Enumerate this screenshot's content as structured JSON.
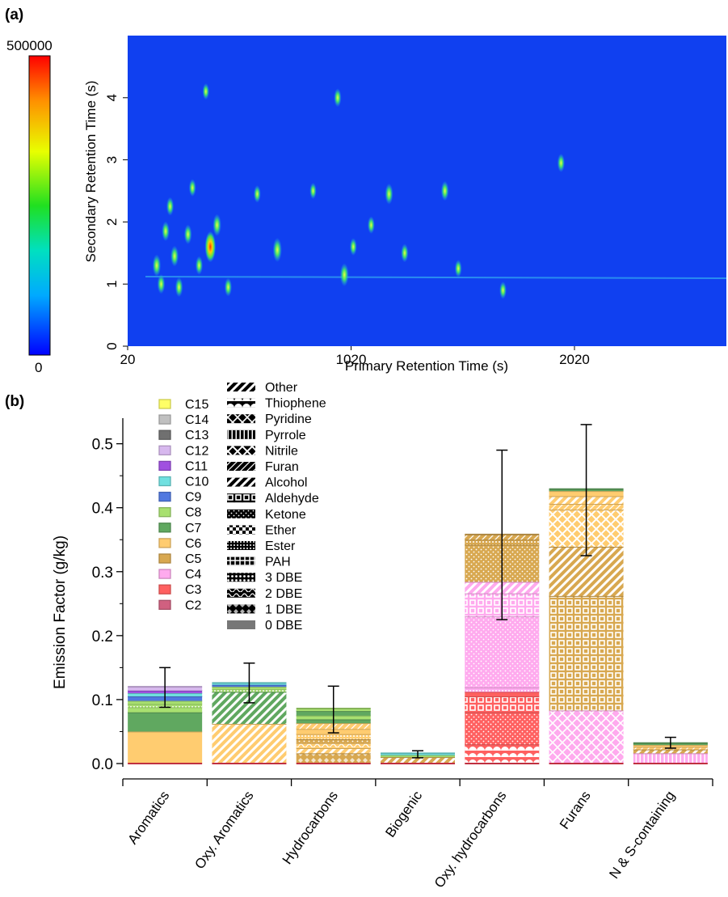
{
  "panel_a": {
    "label": "(a)",
    "colorbar_max": "500000",
    "colorbar_min": "0",
    "xlabel": "Primary Retention Time (s)",
    "ylabel": "Secondary Retention Time (s)",
    "x_ticks": [
      "20",
      "1020",
      "2020"
    ],
    "y_ticks": [
      "0",
      "1",
      "2",
      "3",
      "4"
    ],
    "colors": {
      "background": "#1040f0",
      "peak_low": "#18c8e0",
      "peak_mid": "#40e060",
      "peak_high": "#ff6000"
    }
  },
  "panel_b": {
    "label": "(b)",
    "legend_carbon": [
      {
        "name": "C15",
        "color": "#ffff66"
      },
      {
        "name": "C14",
        "color": "#c0c0c0"
      },
      {
        "name": "C13",
        "color": "#707070"
      },
      {
        "name": "C12",
        "color": "#d7b8ee"
      },
      {
        "name": "C11",
        "color": "#a050e0"
      },
      {
        "name": "C10",
        "color": "#70e0e0"
      },
      {
        "name": "C9",
        "color": "#5078e0"
      },
      {
        "name": "C8",
        "color": "#a8e070"
      },
      {
        "name": "C7",
        "color": "#60a860"
      },
      {
        "name": "C6",
        "color": "#ffcc70"
      },
      {
        "name": "C5",
        "color": "#d8a850"
      },
      {
        "name": "C4",
        "color": "#ffaaee"
      },
      {
        "name": "C3",
        "color": "#ff6060"
      },
      {
        "name": "C2",
        "color": "#d06080"
      }
    ],
    "legend_class": [
      {
        "name": "Other",
        "pattern": "p-diag-bold"
      },
      {
        "name": "Thiophene",
        "pattern": "p-arches"
      },
      {
        "name": "Pyridine",
        "pattern": "p-diamond"
      },
      {
        "name": "Pyrrole",
        "pattern": "p-vlines"
      },
      {
        "name": "Nitrile",
        "pattern": "p-cross"
      },
      {
        "name": "Furan",
        "pattern": "p-diag-thin"
      },
      {
        "name": "Alcohol",
        "pattern": "p-diag-bold"
      },
      {
        "name": "Aldehyde",
        "pattern": "p-squares"
      },
      {
        "name": "Ketone",
        "pattern": "p-dots"
      },
      {
        "name": "Ether",
        "pattern": "p-checker"
      },
      {
        "name": "Ester",
        "pattern": "p-dots-dense"
      },
      {
        "name": "PAH",
        "pattern": "p-grid-bold"
      },
      {
        "name": "3 DBE",
        "pattern": "p-grid-dots"
      },
      {
        "name": "2 DBE",
        "pattern": "p-waves"
      },
      {
        "name": "1 DBE",
        "pattern": "p-diamond-fill"
      },
      {
        "name": "0 DBE",
        "pattern": "p-solid"
      }
    ]
  },
  "chart_data": [
    {
      "type": "heatmap",
      "xlabel": "Primary Retention Time (s)",
      "ylabel": "Secondary Retention Time (s)",
      "xlim": [
        20,
        2700
      ],
      "ylim": [
        0,
        5
      ],
      "x_ticks": [
        20,
        1020,
        2020
      ],
      "y_ticks": [
        0,
        1,
        2,
        3,
        4
      ],
      "colorbar": {
        "min": 0,
        "max": 500000,
        "colormap": "rainbow"
      },
      "peaks": [
        {
          "x": 150,
          "y": 1.3,
          "i": 0.55
        },
        {
          "x": 170,
          "y": 1.0,
          "i": 0.45
        },
        {
          "x": 190,
          "y": 1.85,
          "i": 0.45
        },
        {
          "x": 210,
          "y": 2.25,
          "i": 0.4
        },
        {
          "x": 230,
          "y": 1.45,
          "i": 0.5
        },
        {
          "x": 250,
          "y": 0.95,
          "i": 0.45
        },
        {
          "x": 290,
          "y": 1.8,
          "i": 0.45
        },
        {
          "x": 310,
          "y": 2.55,
          "i": 0.35
        },
        {
          "x": 340,
          "y": 1.3,
          "i": 0.4
        },
        {
          "x": 370,
          "y": 4.1,
          "i": 0.3
        },
        {
          "x": 390,
          "y": 1.6,
          "i": 0.95
        },
        {
          "x": 420,
          "y": 1.95,
          "i": 0.55
        },
        {
          "x": 470,
          "y": 0.95,
          "i": 0.4
        },
        {
          "x": 600,
          "y": 2.45,
          "i": 0.35
        },
        {
          "x": 690,
          "y": 1.55,
          "i": 0.65
        },
        {
          "x": 850,
          "y": 2.5,
          "i": 0.3
        },
        {
          "x": 960,
          "y": 4.0,
          "i": 0.4
        },
        {
          "x": 990,
          "y": 1.15,
          "i": 0.6
        },
        {
          "x": 1030,
          "y": 1.6,
          "i": 0.35
        },
        {
          "x": 1110,
          "y": 1.95,
          "i": 0.35
        },
        {
          "x": 1190,
          "y": 2.45,
          "i": 0.5
        },
        {
          "x": 1260,
          "y": 1.5,
          "i": 0.4
        },
        {
          "x": 1440,
          "y": 2.5,
          "i": 0.45
        },
        {
          "x": 1500,
          "y": 1.25,
          "i": 0.35
        },
        {
          "x": 1700,
          "y": 0.9,
          "i": 0.35
        },
        {
          "x": 1960,
          "y": 2.95,
          "i": 0.4
        }
      ]
    },
    {
      "type": "bar",
      "stacked": true,
      "ylabel": "Emission Factor (g/kg)",
      "ylim": [
        0,
        0.54
      ],
      "y_ticks": [
        0.0,
        0.1,
        0.2,
        0.3,
        0.4,
        0.5
      ],
      "categories": [
        "Aromatics",
        "Oxy. Aromatics",
        "Hydrocarbons",
        "Biogenic",
        "Oxy. hydrocarbons",
        "Furans",
        "N & S-containing"
      ],
      "bars": [
        {
          "category": "Aromatics",
          "total": 0.12,
          "error": [
            0.088,
            0.15
          ],
          "segments": [
            {
              "c": "C6",
              "p": "p-solid",
              "v": 0.05
            },
            {
              "c": "C7",
              "p": "p-solid",
              "v": 0.03
            },
            {
              "c": "C8",
              "p": "p-solid",
              "v": 0.008
            },
            {
              "c": "C8",
              "p": "p-dots-dense",
              "v": 0.005
            },
            {
              "c": "C8",
              "p": "p-solid",
              "v": 0.005
            },
            {
              "c": "C9",
              "p": "p-solid",
              "v": 0.007
            },
            {
              "c": "C10",
              "p": "p-solid",
              "v": 0.005
            },
            {
              "c": "C11",
              "p": "p-solid",
              "v": 0.004
            },
            {
              "c": "C12",
              "p": "p-solid",
              "v": 0.006
            }
          ]
        },
        {
          "category": "Oxy. Aromatics",
          "total": 0.126,
          "error": [
            0.095,
            0.157
          ],
          "segments": [
            {
              "c": "C6",
              "p": "p-diag-bold",
              "v": 0.062
            },
            {
              "c": "C7",
              "p": "p-diag-bold",
              "v": 0.05
            },
            {
              "c": "C8",
              "p": "p-dots-dense",
              "v": 0.004
            },
            {
              "c": "C8",
              "p": "p-solid",
              "v": 0.004
            },
            {
              "c": "C9",
              "p": "p-solid",
              "v": 0.003
            },
            {
              "c": "C10",
              "p": "p-solid",
              "v": 0.003
            }
          ]
        },
        {
          "category": "Hydrocarbons",
          "total": 0.086,
          "error": [
            0.048,
            0.121
          ],
          "segments": [
            {
              "c": "C5",
              "p": "p-diamond-fill",
              "v": 0.016
            },
            {
              "c": "C6",
              "p": "p-diag-bold",
              "v": 0.008
            },
            {
              "c": "C6",
              "p": "p-waves",
              "v": 0.008
            },
            {
              "c": "C5",
              "p": "p-dots",
              "v": 0.006
            },
            {
              "c": "C6",
              "p": "p-dots-dense",
              "v": 0.008
            },
            {
              "c": "C6",
              "p": "p-solid",
              "v": 0.008
            },
            {
              "c": "C6",
              "p": "p-diag-thin",
              "v": 0.009
            },
            {
              "c": "C7",
              "p": "p-solid",
              "v": 0.006
            },
            {
              "c": "C8",
              "p": "p-solid",
              "v": 0.006
            },
            {
              "c": "C7",
              "p": "p-solid",
              "v": 0.007
            },
            {
              "c": "C8",
              "p": "p-solid",
              "v": 0.004
            }
          ]
        },
        {
          "category": "Biogenic",
          "total": 0.016,
          "error": [
            0.009,
            0.02
          ],
          "segments": [
            {
              "c": "C5",
              "p": "p-diag-bold",
              "v": 0.01
            },
            {
              "c": "C8",
              "p": "p-solid",
              "v": 0.003
            },
            {
              "c": "C10",
              "p": "p-solid",
              "v": 0.003
            }
          ]
        },
        {
          "category": "Oxy. hydrocarbons",
          "total": 0.358,
          "error": [
            0.225,
            0.49
          ],
          "segments": [
            {
              "c": "C3",
              "p": "p-arches",
              "v": 0.03
            },
            {
              "c": "C3",
              "p": "p-dots",
              "v": 0.05
            },
            {
              "c": "C3",
              "p": "p-squares",
              "v": 0.025
            },
            {
              "c": "C3",
              "p": "p-solid",
              "v": 0.007
            },
            {
              "c": "C4",
              "p": "p-dots-dense",
              "v": 0.007
            },
            {
              "c": "C4",
              "p": "p-dots",
              "v": 0.111
            },
            {
              "c": "C4",
              "p": "p-squares",
              "v": 0.036
            },
            {
              "c": "C4",
              "p": "p-diag-bold",
              "v": 0.018
            },
            {
              "c": "C5",
              "p": "p-dots",
              "v": 0.058
            },
            {
              "c": "C5",
              "p": "p-dots-dense",
              "v": 0.008
            },
            {
              "c": "C5",
              "p": "p-diag-thin",
              "v": 0.008
            }
          ]
        },
        {
          "category": "Furans",
          "total": 0.429,
          "error": [
            0.325,
            0.53
          ],
          "segments": [
            {
              "c": "C4",
              "p": "p-diamond",
              "v": 0.083
            },
            {
              "c": "C5",
              "p": "p-squares",
              "v": 0.179
            },
            {
              "c": "C5",
              "p": "p-diag-bold",
              "v": 0.077
            },
            {
              "c": "C6",
              "p": "p-cross",
              "v": 0.058
            },
            {
              "c": "C6",
              "p": "p-diag-thin",
              "v": 0.009
            },
            {
              "c": "C6",
              "p": "p-diag-bold",
              "v": 0.012
            },
            {
              "c": "C6",
              "p": "p-solid",
              "v": 0.008
            },
            {
              "c": "C7",
              "p": "p-solid",
              "v": 0.003
            }
          ]
        },
        {
          "category": "N & S-containing",
          "total": 0.032,
          "error": [
            0.024,
            0.041
          ],
          "segments": [
            {
              "c": "C4",
              "p": "p-vlines",
              "v": 0.016
            },
            {
              "c": "C5",
              "p": "p-diag-bold",
              "v": 0.006
            },
            {
              "c": "C6",
              "p": "p-diag-thin",
              "v": 0.004
            },
            {
              "c": "C6",
              "p": "p-solid",
              "v": 0.003
            },
            {
              "c": "C7",
              "p": "p-solid",
              "v": 0.003
            }
          ]
        }
      ]
    }
  ]
}
